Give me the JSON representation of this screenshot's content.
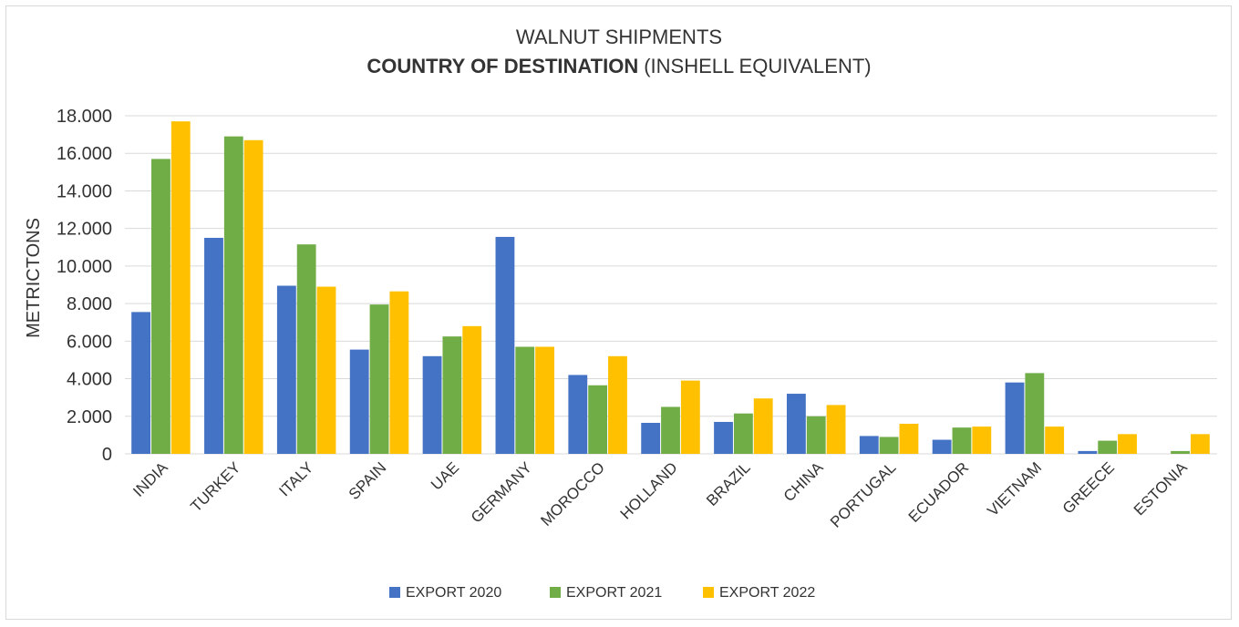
{
  "chart_data": {
    "type": "bar",
    "title_line1": "WALNUT SHIPMENTS",
    "title_line2_bold": "COUNTRY OF DESTINATION",
    "title_line2_rest": "(INSHELL EQUIVALENT)",
    "ylabel": "METRICTONS",
    "xlabel": "",
    "ylim": [
      0,
      18000
    ],
    "yticks": [
      0,
      2000,
      4000,
      6000,
      8000,
      10000,
      12000,
      14000,
      16000,
      18000
    ],
    "ytick_labels": [
      "0",
      "2.000",
      "4.000",
      "6.000",
      "8.000",
      "10.000",
      "12.000",
      "14.000",
      "16.000",
      "18.000"
    ],
    "grid": true,
    "legend_position": "bottom",
    "categories": [
      "INDIA",
      "TURKEY",
      "ITALY",
      "SPAIN",
      "UAE",
      "GERMANY",
      "MOROCCO",
      "HOLLAND",
      "BRAZIL",
      "CHINA",
      "PORTUGAL",
      "ECUADOR",
      "VIETNAM",
      "GREECE",
      "ESTONIA"
    ],
    "series": [
      {
        "name": "EXPORT 2020",
        "color": "#4472c4",
        "values": [
          7550,
          11500,
          8950,
          5550,
          5200,
          11550,
          4200,
          1650,
          1700,
          3200,
          950,
          750,
          3800,
          150,
          0
        ]
      },
      {
        "name": "EXPORT 2021",
        "color": "#70ad47",
        "values": [
          15700,
          16900,
          11150,
          7950,
          6250,
          5700,
          3650,
          2500,
          2150,
          2000,
          900,
          1400,
          4300,
          700,
          150
        ]
      },
      {
        "name": "EXPORT 2022",
        "color": "#ffc000",
        "values": [
          17700,
          16700,
          8900,
          8650,
          6800,
          5700,
          5200,
          3900,
          2950,
          2600,
          1600,
          1450,
          1450,
          1050,
          1050
        ]
      }
    ]
  }
}
